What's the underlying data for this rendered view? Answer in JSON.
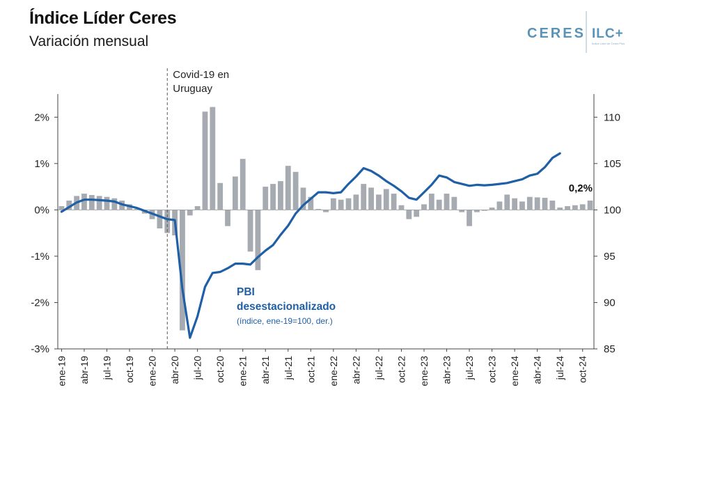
{
  "header": {
    "title": "Índice Líder Ceres",
    "subtitle": "Variación mensual"
  },
  "logo": {
    "left_text": "CERES",
    "right_text": "ILC+",
    "tagline": "Índice Líder de Ceres Plus"
  },
  "colors": {
    "bars": "#a6abb1",
    "line": "#1f5fa6",
    "line_label": "#1f5fa6",
    "axis": "#444444",
    "logo": "#5a93b8"
  },
  "chart_data": {
    "type": "bar",
    "annotation": "Covid-19 en\nUruguay",
    "annotation_month_index": 14.5,
    "last_value_label": "0,2%",
    "left_axis": {
      "ylim": [
        -3,
        2.5
      ],
      "ticks": [
        "-3%",
        "-2%",
        "-1%",
        "0%",
        "1%",
        "2%"
      ],
      "tick_values": [
        -3,
        -2,
        -1,
        0,
        1,
        2
      ]
    },
    "right_axis": {
      "ylim": [
        85,
        112.5
      ],
      "ticks": [
        "85",
        "90",
        "95",
        "100",
        "105",
        "110"
      ],
      "tick_values": [
        85,
        90,
        95,
        100,
        105,
        110
      ]
    },
    "x_tick_labels": [
      "ene-19",
      "abr-19",
      "jul-19",
      "oct-19",
      "ene-20",
      "abr-20",
      "jul-20",
      "oct-20",
      "ene-21",
      "abr-21",
      "jul-21",
      "oct-21",
      "ene-22",
      "abr-22",
      "jul-22",
      "oct-22",
      "ene-23",
      "abr-23",
      "jul-23",
      "oct-23",
      "ene-24",
      "abr-24",
      "jul-24",
      "oct-24"
    ],
    "series": [
      {
        "name": "",
        "axis": "left",
        "kind": "bar",
        "values": [
          0.08,
          0.2,
          0.3,
          0.35,
          0.32,
          0.3,
          0.28,
          0.25,
          0.2,
          0.12,
          0.02,
          -0.08,
          -0.2,
          -0.4,
          -0.5,
          -0.55,
          -2.6,
          -0.12,
          0.08,
          2.12,
          2.22,
          0.58,
          -0.35,
          0.72,
          1.1,
          -0.9,
          -1.3,
          0.5,
          0.56,
          0.62,
          0.95,
          0.82,
          0.48,
          0.28,
          0.02,
          -0.05,
          0.25,
          0.22,
          0.25,
          0.33,
          0.56,
          0.48,
          0.33,
          0.45,
          0.35,
          0.1,
          -0.2,
          -0.15,
          0.12,
          0.35,
          0.22,
          0.35,
          0.28,
          -0.05,
          -0.35,
          -0.05,
          -0.02,
          0.05,
          0.18,
          0.33,
          0.25,
          0.18,
          0.28,
          0.27,
          0.26,
          0.2,
          0.05,
          0.08,
          0.1,
          0.12,
          0.2
        ]
      },
      {
        "name": "PBI\ndesestacionalizado",
        "note": "(índice, ene-19=100, der.)",
        "axis": "right",
        "kind": "line",
        "values": [
          99.8,
          100.3,
          100.8,
          101.1,
          101.1,
          101.05,
          101.0,
          100.9,
          100.6,
          100.4,
          100.2,
          99.9,
          99.6,
          99.3,
          99.0,
          98.9,
          91.5,
          86.2,
          88.5,
          91.7,
          93.2,
          93.3,
          93.7,
          94.2,
          94.2,
          94.1,
          94.9,
          95.6,
          96.2,
          97.3,
          98.3,
          99.6,
          100.5,
          101.2,
          101.9,
          101.9,
          101.8,
          101.9,
          102.8,
          103.6,
          104.5,
          104.2,
          103.7,
          103.1,
          102.6,
          102.0,
          101.3,
          101.1,
          101.9,
          102.7,
          103.7,
          103.5,
          103.0,
          102.8,
          102.6,
          102.7,
          102.65,
          102.7,
          102.8,
          102.9,
          103.1,
          103.3,
          103.7,
          103.9,
          104.6,
          105.6,
          106.1
        ]
      }
    ]
  }
}
